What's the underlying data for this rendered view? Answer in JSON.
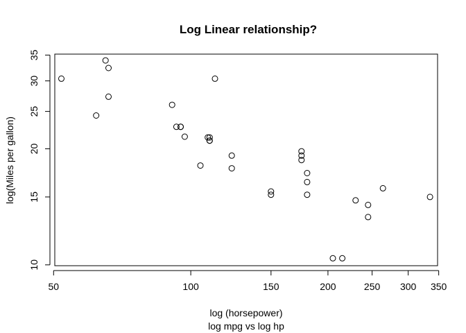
{
  "chart_data": {
    "type": "scatter",
    "title": "Log Linear relationship?",
    "xlabel": "log (horsepower)",
    "subtitle": "log mpg vs log hp",
    "ylabel": "log(Miles per gallon)",
    "x_scale": "log",
    "y_scale": "log",
    "xlim": [
      50.3,
      348
    ],
    "ylim": [
      9.95,
      35.2
    ],
    "x_ticks": [
      50,
      100,
      150,
      200,
      250,
      300,
      350
    ],
    "y_ticks": [
      10,
      15,
      20,
      25,
      30,
      35
    ],
    "grid": false,
    "legend": "none",
    "marker": "open-circle",
    "colors": {
      "points": "#000000",
      "frame": "#000000",
      "background": "#ffffff"
    },
    "x": [
      52,
      62,
      65,
      66,
      66,
      91,
      93,
      95,
      95,
      97,
      105,
      109,
      110,
      110,
      110,
      113,
      123,
      123,
      150,
      150,
      175,
      175,
      175,
      180,
      180,
      180,
      205,
      215,
      230,
      245,
      245,
      264,
      335
    ],
    "y": [
      30.4,
      24.4,
      33.9,
      32.4,
      27.3,
      26.0,
      22.8,
      22.8,
      22.8,
      21.5,
      18.1,
      21.4,
      21.0,
      21.0,
      21.4,
      30.4,
      19.2,
      17.8,
      15.5,
      15.2,
      19.7,
      18.7,
      19.2,
      17.3,
      16.4,
      15.2,
      10.4,
      10.4,
      14.7,
      14.3,
      13.3,
      15.8,
      15.0
    ]
  }
}
